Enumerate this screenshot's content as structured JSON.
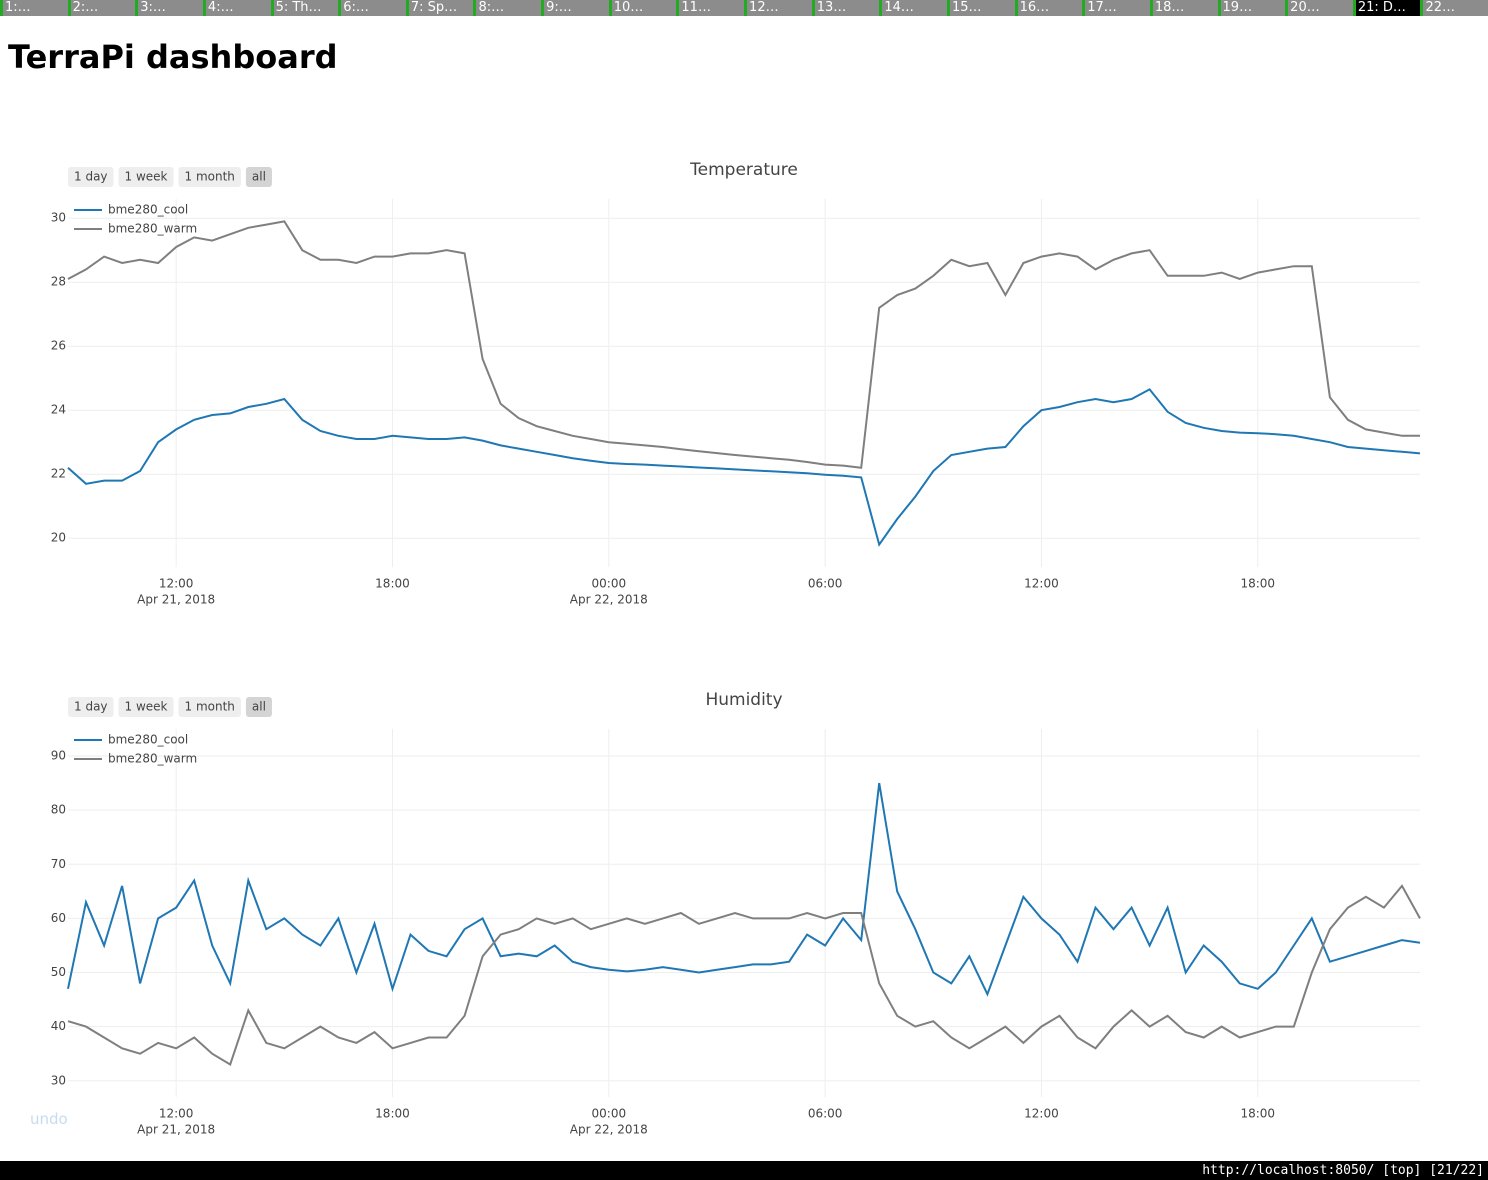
{
  "tabs": [
    {
      "label": "1:…"
    },
    {
      "label": "2:…"
    },
    {
      "label": "3:…"
    },
    {
      "label": "4:…"
    },
    {
      "label": "5: Th…"
    },
    {
      "label": "6:…"
    },
    {
      "label": "7: Sp…"
    },
    {
      "label": "8:…"
    },
    {
      "label": "9:…"
    },
    {
      "label": "10…"
    },
    {
      "label": "11…"
    },
    {
      "label": "12…"
    },
    {
      "label": "13…"
    },
    {
      "label": "14…"
    },
    {
      "label": "15…"
    },
    {
      "label": "16…"
    },
    {
      "label": "17…"
    },
    {
      "label": "18…"
    },
    {
      "label": "19…"
    },
    {
      "label": "20…"
    },
    {
      "label": "21: D…",
      "active": true
    },
    {
      "label": "22…"
    }
  ],
  "header": {
    "title": "TerraPi dashboard"
  },
  "chart_data": [
    {
      "type": "line",
      "title": "Temperature",
      "range_buttons": [
        "1 day",
        "1 week",
        "1 month",
        "all"
      ],
      "x": [
        "2018-04-21T09:00",
        "2018-04-21T09:30",
        "2018-04-21T10:00",
        "2018-04-21T10:30",
        "2018-04-21T11:00",
        "2018-04-21T11:30",
        "2018-04-21T12:00",
        "2018-04-21T12:30",
        "2018-04-21T13:00",
        "2018-04-21T13:30",
        "2018-04-21T14:00",
        "2018-04-21T14:30",
        "2018-04-21T15:00",
        "2018-04-21T15:30",
        "2018-04-21T16:00",
        "2018-04-21T16:30",
        "2018-04-21T17:00",
        "2018-04-21T17:30",
        "2018-04-21T18:00",
        "2018-04-21T18:30",
        "2018-04-21T19:00",
        "2018-04-21T19:30",
        "2018-04-21T20:00",
        "2018-04-21T20:30",
        "2018-04-21T21:00",
        "2018-04-21T21:30",
        "2018-04-21T22:00",
        "2018-04-21T22:30",
        "2018-04-21T23:00",
        "2018-04-21T23:30",
        "2018-04-22T00:00",
        "2018-04-22T00:30",
        "2018-04-22T01:00",
        "2018-04-22T01:30",
        "2018-04-22T02:00",
        "2018-04-22T02:30",
        "2018-04-22T03:00",
        "2018-04-22T03:30",
        "2018-04-22T04:00",
        "2018-04-22T04:30",
        "2018-04-22T05:00",
        "2018-04-22T05:30",
        "2018-04-22T06:00",
        "2018-04-22T06:30",
        "2018-04-22T07:00",
        "2018-04-22T07:30",
        "2018-04-22T08:00",
        "2018-04-22T08:30",
        "2018-04-22T09:00",
        "2018-04-22T09:30",
        "2018-04-22T10:00",
        "2018-04-22T10:30",
        "2018-04-22T11:00",
        "2018-04-22T11:30",
        "2018-04-22T12:00",
        "2018-04-22T12:30",
        "2018-04-22T13:00",
        "2018-04-22T13:30",
        "2018-04-22T14:00",
        "2018-04-22T14:30",
        "2018-04-22T15:00",
        "2018-04-22T15:30",
        "2018-04-22T16:00",
        "2018-04-22T16:30",
        "2018-04-22T17:00",
        "2018-04-22T17:30",
        "2018-04-22T18:00",
        "2018-04-22T18:30",
        "2018-04-22T19:00",
        "2018-04-22T19:30",
        "2018-04-22T20:00",
        "2018-04-22T20:30",
        "2018-04-22T21:00",
        "2018-04-22T21:30",
        "2018-04-22T22:00",
        "2018-04-22T22:30"
      ],
      "xlim": [
        "2018-04-21T09:00",
        "2018-04-22T22:30"
      ],
      "xticks": [
        {
          "value": "2018-04-21T12:00",
          "label": "12:00",
          "date_label": "Apr 21, 2018"
        },
        {
          "value": "2018-04-21T18:00",
          "label": "18:00"
        },
        {
          "value": "2018-04-22T00:00",
          "label": "00:00",
          "date_label": "Apr 22, 2018"
        },
        {
          "value": "2018-04-22T06:00",
          "label": "06:00"
        },
        {
          "value": "2018-04-22T12:00",
          "label": "12:00"
        },
        {
          "value": "2018-04-22T18:00",
          "label": "18:00"
        }
      ],
      "ylim": [
        19.1,
        30.6
      ],
      "yticks": [
        20,
        22,
        24,
        26,
        28,
        30
      ],
      "grid": true,
      "legend": "top-left",
      "series": [
        {
          "name": "bme280_cool",
          "color": "#1f77b4",
          "values": [
            22.2,
            21.7,
            21.8,
            21.8,
            22.1,
            23.0,
            23.4,
            23.7,
            23.85,
            23.9,
            24.1,
            24.2,
            24.35,
            23.7,
            23.35,
            23.2,
            23.1,
            23.1,
            23.2,
            23.15,
            23.1,
            23.1,
            23.15,
            23.05,
            22.9,
            22.8,
            22.7,
            22.6,
            22.5,
            22.42,
            22.35,
            22.32,
            22.3,
            22.27,
            22.24,
            22.21,
            22.18,
            22.15,
            22.12,
            22.09,
            22.06,
            22.03,
            21.98,
            21.95,
            21.9,
            19.8,
            20.6,
            21.3,
            22.1,
            22.6,
            22.7,
            22.8,
            22.85,
            23.5,
            24.0,
            24.1,
            24.25,
            24.35,
            24.25,
            24.35,
            24.65,
            23.95,
            23.6,
            23.45,
            23.35,
            23.3,
            23.28,
            23.25,
            23.2,
            23.1,
            23.0,
            22.85,
            22.8,
            22.75,
            22.7,
            22.65
          ]
        },
        {
          "name": "bme280_warm",
          "color": "#7f7f7f",
          "values": [
            28.1,
            28.4,
            28.8,
            28.6,
            28.7,
            28.6,
            29.1,
            29.4,
            29.3,
            29.5,
            29.7,
            29.8,
            29.9,
            29.0,
            28.7,
            28.7,
            28.6,
            28.8,
            28.8,
            28.9,
            28.9,
            29.0,
            28.9,
            25.6,
            24.2,
            23.75,
            23.5,
            23.35,
            23.2,
            23.1,
            23.0,
            22.95,
            22.9,
            22.85,
            22.78,
            22.72,
            22.66,
            22.6,
            22.55,
            22.5,
            22.45,
            22.38,
            22.3,
            22.27,
            22.2,
            27.2,
            27.6,
            27.8,
            28.2,
            28.7,
            28.5,
            28.6,
            27.6,
            28.6,
            28.8,
            28.9,
            28.8,
            28.4,
            28.7,
            28.9,
            29.0,
            28.2,
            28.2,
            28.2,
            28.3,
            28.1,
            28.3,
            28.4,
            28.5,
            28.5,
            24.4,
            23.7,
            23.4,
            23.3,
            23.2,
            23.2
          ]
        }
      ]
    },
    {
      "type": "line",
      "title": "Humidity",
      "range_buttons": [
        "1 day",
        "1 week",
        "1 month",
        "all"
      ],
      "x": [
        "2018-04-21T09:00",
        "2018-04-21T09:30",
        "2018-04-21T10:00",
        "2018-04-21T10:30",
        "2018-04-21T11:00",
        "2018-04-21T11:30",
        "2018-04-21T12:00",
        "2018-04-21T12:30",
        "2018-04-21T13:00",
        "2018-04-21T13:30",
        "2018-04-21T14:00",
        "2018-04-21T14:30",
        "2018-04-21T15:00",
        "2018-04-21T15:30",
        "2018-04-21T16:00",
        "2018-04-21T16:30",
        "2018-04-21T17:00",
        "2018-04-21T17:30",
        "2018-04-21T18:00",
        "2018-04-21T18:30",
        "2018-04-21T19:00",
        "2018-04-21T19:30",
        "2018-04-21T20:00",
        "2018-04-21T20:30",
        "2018-04-21T21:00",
        "2018-04-21T21:30",
        "2018-04-21T22:00",
        "2018-04-21T22:30",
        "2018-04-21T23:00",
        "2018-04-21T23:30",
        "2018-04-22T00:00",
        "2018-04-22T00:30",
        "2018-04-22T01:00",
        "2018-04-22T01:30",
        "2018-04-22T02:00",
        "2018-04-22T02:30",
        "2018-04-22T03:00",
        "2018-04-22T03:30",
        "2018-04-22T04:00",
        "2018-04-22T04:30",
        "2018-04-22T05:00",
        "2018-04-22T05:30",
        "2018-04-22T06:00",
        "2018-04-22T06:30",
        "2018-04-22T07:00",
        "2018-04-22T07:30",
        "2018-04-22T08:00",
        "2018-04-22T08:30",
        "2018-04-22T09:00",
        "2018-04-22T09:30",
        "2018-04-22T10:00",
        "2018-04-22T10:30",
        "2018-04-22T11:00",
        "2018-04-22T11:30",
        "2018-04-22T12:00",
        "2018-04-22T12:30",
        "2018-04-22T13:00",
        "2018-04-22T13:30",
        "2018-04-22T14:00",
        "2018-04-22T14:30",
        "2018-04-22T15:00",
        "2018-04-22T15:30",
        "2018-04-22T16:00",
        "2018-04-22T16:30",
        "2018-04-22T17:00",
        "2018-04-22T17:30",
        "2018-04-22T18:00",
        "2018-04-22T18:30",
        "2018-04-22T19:00",
        "2018-04-22T19:30",
        "2018-04-22T20:00",
        "2018-04-22T20:30",
        "2018-04-22T21:00",
        "2018-04-22T21:30",
        "2018-04-22T22:00",
        "2018-04-22T22:30"
      ],
      "xlim": [
        "2018-04-21T09:00",
        "2018-04-22T22:30"
      ],
      "xticks": [
        {
          "value": "2018-04-21T12:00",
          "label": "12:00",
          "date_label": "Apr 21, 2018"
        },
        {
          "value": "2018-04-21T18:00",
          "label": "18:00"
        },
        {
          "value": "2018-04-22T00:00",
          "label": "00:00",
          "date_label": "Apr 22, 2018"
        },
        {
          "value": "2018-04-22T06:00",
          "label": "06:00"
        },
        {
          "value": "2018-04-22T12:00",
          "label": "12:00"
        },
        {
          "value": "2018-04-22T18:00",
          "label": "18:00"
        }
      ],
      "ylim": [
        27,
        95
      ],
      "yticks": [
        30,
        40,
        50,
        60,
        70,
        80,
        90
      ],
      "grid": true,
      "legend": "top-left",
      "series": [
        {
          "name": "bme280_cool",
          "color": "#1f77b4",
          "values": [
            47,
            63,
            55,
            66,
            48,
            60,
            62,
            67,
            55,
            48,
            67,
            58,
            60,
            57,
            55,
            60,
            50,
            59,
            47,
            57,
            54,
            53,
            58,
            60,
            53,
            53.5,
            53,
            55,
            52,
            51,
            50.5,
            50.2,
            50.5,
            51,
            50.5,
            50,
            50.5,
            51,
            51.5,
            51.5,
            52,
            57,
            55,
            60,
            56,
            85,
            65,
            58,
            50,
            48,
            53,
            46,
            55,
            64,
            60,
            57,
            52,
            62,
            58,
            62,
            55,
            62,
            50,
            55,
            52,
            48,
            47,
            50,
            55,
            60,
            52,
            53,
            54,
            55,
            56,
            55.5
          ]
        },
        {
          "name": "bme280_warm",
          "color": "#7f7f7f",
          "values": [
            41,
            40,
            38,
            36,
            35,
            37,
            36,
            38,
            35,
            33,
            43,
            37,
            36,
            38,
            40,
            38,
            37,
            39,
            36,
            37,
            38,
            38,
            42,
            53,
            57,
            58,
            60,
            59,
            60,
            58,
            59,
            60,
            59,
            60,
            61,
            59,
            60,
            61,
            60,
            60,
            60,
            61,
            60,
            61,
            61,
            48,
            42,
            40,
            41,
            38,
            36,
            38,
            40,
            37,
            40,
            42,
            38,
            36,
            40,
            43,
            40,
            42,
            39,
            38,
            40,
            38,
            39,
            40,
            40,
            50,
            58,
            62,
            64,
            62,
            66,
            60
          ]
        }
      ]
    }
  ],
  "undo": "undo",
  "status_bar": "http://localhost:8050/ [top] [21/22]"
}
